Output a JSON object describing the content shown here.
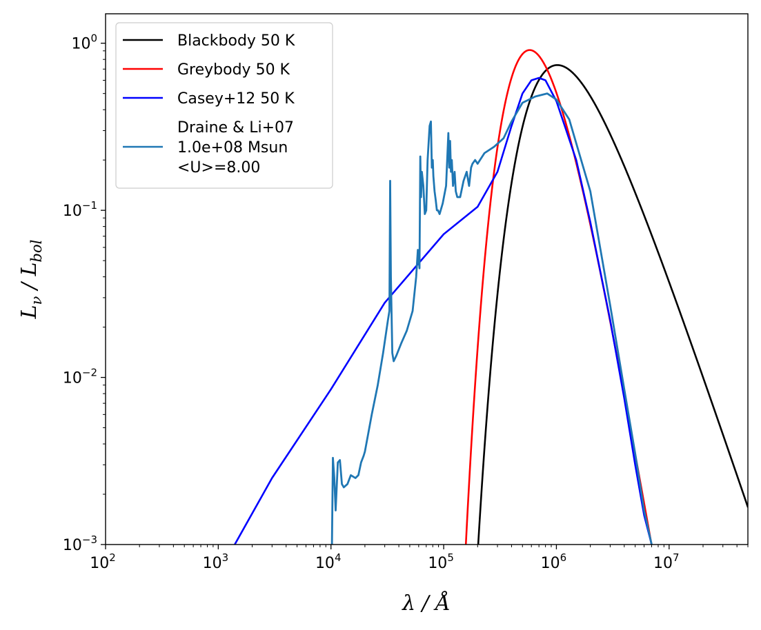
{
  "chart_data": {
    "type": "line",
    "title": "",
    "xlabel": "λ / Å",
    "ylabel": "Lν / Lbol",
    "xscale": "log",
    "yscale": "log",
    "xlim": [
      100,
      50000000
    ],
    "ylim": [
      0.001,
      1.5
    ],
    "x_ticks": [
      {
        "value": 100,
        "base": "10",
        "exp": "2"
      },
      {
        "value": 1000,
        "base": "10",
        "exp": "3"
      },
      {
        "value": 10000,
        "base": "10",
        "exp": "4"
      },
      {
        "value": 100000,
        "base": "10",
        "exp": "5"
      },
      {
        "value": 1000000,
        "base": "10",
        "exp": "6"
      },
      {
        "value": 10000000,
        "base": "10",
        "exp": "7"
      }
    ],
    "y_ticks": [
      {
        "value": 0.001,
        "base": "10",
        "exp": "−3"
      },
      {
        "value": 0.01,
        "base": "10",
        "exp": "−2"
      },
      {
        "value": 0.1,
        "base": "10",
        "exp": "−1"
      },
      {
        "value": 1,
        "base": "10",
        "exp": "0"
      }
    ],
    "legend_position": "top-left",
    "series": [
      {
        "name": "Blackbody 50 K",
        "label_lines": [
          "Blackbody 50 K"
        ],
        "color": "#000000",
        "kind": "blackbody",
        "T": 50,
        "peak_value": 0.74
      },
      {
        "name": "Greybody 50 K",
        "label_lines": [
          "Greybody 50 K"
        ],
        "color": "#ff0000",
        "kind": "greybody",
        "T": 50,
        "beta": 2.0,
        "peak_value": 0.91
      },
      {
        "name": "Casey+12 50 K",
        "label_lines": [
          "Casey+12 50 K"
        ],
        "color": "#0000ff",
        "kind": "points",
        "x": [
          1400,
          3000,
          10000,
          30000,
          100000,
          200000,
          300000,
          400000,
          500000,
          600000,
          700000,
          800000,
          1000000,
          1500000,
          2000000,
          3000000,
          4000000,
          5000000,
          6000000,
          7000000
        ],
        "y": [
          0.001,
          0.0025,
          0.0085,
          0.028,
          0.072,
          0.105,
          0.17,
          0.32,
          0.5,
          0.6,
          0.62,
          0.6,
          0.45,
          0.2,
          0.085,
          0.022,
          0.0075,
          0.003,
          0.0015,
          0.001
        ]
      },
      {
        "name": "Draine & Li+07 1.0e+08 Msun <U>=8.00",
        "label_lines": [
          "Draine & Li+07",
          "1.0e+08 Msun",
          "<U>=8.00"
        ],
        "color": "#1f77b4",
        "kind": "points",
        "x": [
          10200,
          10400,
          10700,
          11000,
          11500,
          12000,
          12500,
          13000,
          14000,
          15000,
          16500,
          17500,
          18500,
          19500,
          20000,
          21000,
          23000,
          26000,
          29000,
          32000,
          33000,
          33500,
          34000,
          35000,
          36000,
          38000,
          42000,
          47000,
          53000,
          57000,
          59000,
          61000,
          62000,
          63000,
          64000,
          66000,
          68000,
          70000,
          72000,
          75000,
          77000,
          78500,
          80000,
          81000,
          83000,
          85000,
          87000,
          89000,
          92000,
          98000,
          105000,
          110000,
          112000,
          114000,
          116000,
          118000,
          121000,
          125000,
          128000,
          132000,
          140000,
          150000,
          160000,
          168000,
          175000,
          180000,
          190000,
          200000,
          230000,
          280000,
          340000,
          400000,
          500000,
          650000,
          830000,
          1000000,
          1300000,
          2000000,
          3000000,
          4000000,
          5000000,
          6000000,
          7000000
        ],
        "y": [
          0.001,
          0.0033,
          0.0025,
          0.0016,
          0.0031,
          0.0032,
          0.0023,
          0.0022,
          0.0023,
          0.0026,
          0.0025,
          0.0026,
          0.0031,
          0.0034,
          0.0036,
          0.0043,
          0.006,
          0.009,
          0.014,
          0.022,
          0.025,
          0.15,
          0.04,
          0.014,
          0.0125,
          0.0135,
          0.016,
          0.019,
          0.025,
          0.04,
          0.058,
          0.045,
          0.21,
          0.12,
          0.17,
          0.14,
          0.095,
          0.1,
          0.2,
          0.32,
          0.34,
          0.18,
          0.2,
          0.16,
          0.13,
          0.115,
          0.1,
          0.1,
          0.095,
          0.11,
          0.14,
          0.29,
          0.18,
          0.26,
          0.17,
          0.2,
          0.14,
          0.17,
          0.13,
          0.12,
          0.12,
          0.15,
          0.17,
          0.14,
          0.18,
          0.19,
          0.2,
          0.19,
          0.22,
          0.24,
          0.27,
          0.34,
          0.44,
          0.48,
          0.5,
          0.46,
          0.35,
          0.13,
          0.027,
          0.0085,
          0.0035,
          0.0016,
          0.001
        ]
      }
    ]
  }
}
